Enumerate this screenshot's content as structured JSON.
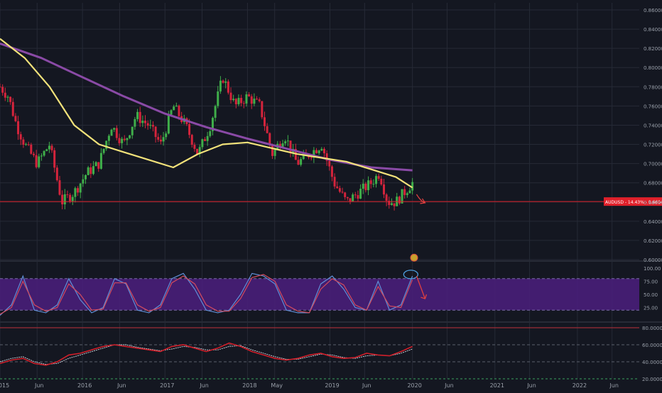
{
  "colors": {
    "background": "#141721",
    "grid": "#262a36",
    "candle_up": "#3fae4a",
    "candle_down": "#d4243c",
    "ma_fast": "#f2e27a",
    "ma_slow": "#8a4aa6",
    "price_line": "#e0202a",
    "stoch_k": "#5f8fd6",
    "stoch_d": "#d34b5d",
    "stoch_band": "#4b1f7e",
    "annotation": "#e04040",
    "annotation_circle": "#4e9fe0",
    "axis_text": "#9aa0aa"
  },
  "chart_data": [
    {
      "type": "candlestick",
      "title": "",
      "xlabel": "",
      "ylabel": "",
      "x_ticks": [
        "2015",
        "Jun",
        "2016",
        "Jun",
        "2017",
        "Jun",
        "2018",
        "May",
        "2019",
        "Jun",
        "2020",
        "Jun",
        "2021",
        "Jun",
        "2022",
        "Jun"
      ],
      "y_ticks": [
        "0.86000",
        "0.84000",
        "0.82000",
        "0.80000",
        "0.78000",
        "0.76000",
        "0.74000",
        "0.72000",
        "0.70000",
        "0.68000",
        "0.66000",
        "0.64000",
        "0.62000",
        "0.60000"
      ],
      "ylim": [
        0.6,
        0.86
      ],
      "grid": true,
      "price_label": "AUDUSD - 14.43% - 0.66047",
      "price_level": 0.66047,
      "close_series": {
        "x": [
          2015.0,
          2015.1,
          2015.2,
          2015.3,
          2015.45,
          2015.6,
          2015.75,
          2015.9,
          2016.05,
          2016.2,
          2016.35,
          2016.5,
          2016.65,
          2016.8,
          2016.95,
          2017.1,
          2017.25,
          2017.4,
          2017.55,
          2017.7,
          2017.85,
          2018.0,
          2018.15,
          2018.3,
          2018.45,
          2018.6,
          2018.75,
          2018.9,
          2019.05,
          2019.2,
          2019.35,
          2019.5,
          2019.6,
          2019.7,
          2019.8,
          2019.9,
          2020.0
        ],
        "y": [
          0.78,
          0.77,
          0.74,
          0.72,
          0.7,
          0.72,
          0.66,
          0.67,
          0.69,
          0.7,
          0.74,
          0.72,
          0.75,
          0.74,
          0.72,
          0.76,
          0.74,
          0.71,
          0.74,
          0.79,
          0.76,
          0.77,
          0.76,
          0.71,
          0.73,
          0.7,
          0.71,
          0.72,
          0.68,
          0.66,
          0.67,
          0.68,
          0.69,
          0.66,
          0.66,
          0.67,
          0.68
        ]
      },
      "moving_average_fast": {
        "x": [
          2015.0,
          2015.3,
          2015.6,
          2015.9,
          2016.2,
          2016.5,
          2016.8,
          2017.1,
          2017.4,
          2017.7,
          2018.0,
          2018.3,
          2018.6,
          2018.9,
          2019.2,
          2019.5,
          2019.8,
          2020.0
        ],
        "y": [
          0.83,
          0.81,
          0.78,
          0.74,
          0.72,
          0.712,
          0.704,
          0.696,
          0.71,
          0.72,
          0.722,
          0.716,
          0.71,
          0.706,
          0.702,
          0.694,
          0.686,
          0.675
        ]
      },
      "moving_average_slow": {
        "x": [
          2015.0,
          2015.5,
          2016.0,
          2016.5,
          2017.0,
          2017.5,
          2018.0,
          2018.5,
          2019.0,
          2019.5,
          2020.0
        ],
        "y": [
          0.825,
          0.81,
          0.79,
          0.77,
          0.752,
          0.738,
          0.726,
          0.715,
          0.704,
          0.696,
          0.693
        ]
      }
    },
    {
      "type": "line",
      "title": "",
      "y_ticks": [
        "100.00",
        "75.00",
        "50.00",
        "25.00"
      ],
      "ylim": [
        0,
        100
      ],
      "band": [
        20,
        80
      ],
      "series": [
        {
          "values": [
            10,
            30,
            85,
            20,
            15,
            30,
            80,
            40,
            15,
            25,
            80,
            70,
            20,
            15,
            30,
            80,
            90,
            60,
            20,
            15,
            20,
            50,
            90,
            85,
            70,
            20,
            15,
            15,
            70,
            85,
            60,
            25,
            20,
            75,
            20,
            30,
            85
          ]
        },
        {
          "values": [
            12,
            25,
            75,
            30,
            18,
            25,
            70,
            50,
            20,
            22,
            72,
            72,
            30,
            18,
            25,
            72,
            85,
            70,
            30,
            18,
            18,
            42,
            82,
            88,
            75,
            30,
            18,
            15,
            60,
            80,
            68,
            30,
            20,
            65,
            28,
            25,
            78
          ]
        }
      ]
    },
    {
      "type": "line",
      "title": "",
      "y_ticks": [
        "80.00000",
        "60.00000",
        "40.00000",
        "20.00000"
      ],
      "ylim": [
        20,
        80
      ],
      "levels": [
        80,
        20
      ],
      "series": [
        {
          "values": [
            38,
            42,
            44,
            38,
            36,
            40,
            48,
            50,
            54,
            58,
            60,
            58,
            56,
            54,
            52,
            58,
            60,
            56,
            52,
            56,
            62,
            58,
            52,
            48,
            44,
            42,
            44,
            48,
            50,
            46,
            44,
            45,
            50,
            48,
            47,
            52,
            58
          ]
        },
        {
          "values": [
            40,
            44,
            46,
            40,
            37,
            38,
            44,
            48,
            52,
            56,
            60,
            60,
            57,
            55,
            53,
            55,
            58,
            57,
            54,
            54,
            58,
            59,
            54,
            50,
            46,
            43,
            43,
            46,
            49,
            48,
            45,
            44,
            47,
            48,
            47,
            50,
            55
          ]
        }
      ]
    }
  ]
}
